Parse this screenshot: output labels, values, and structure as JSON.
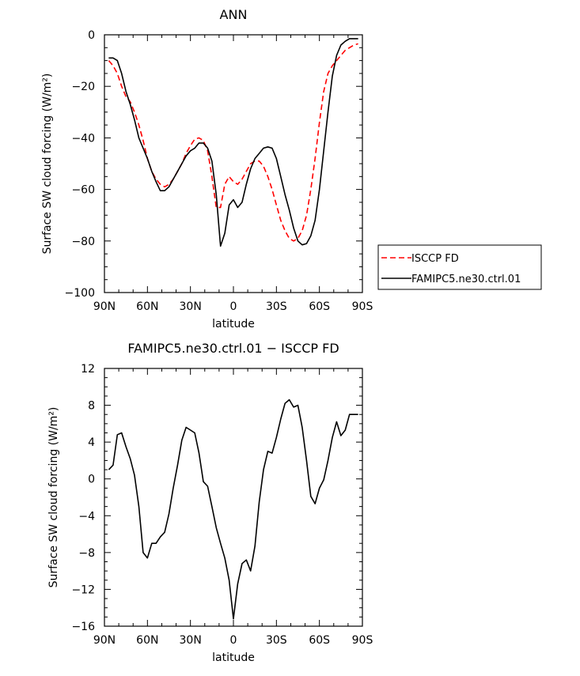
{
  "chart_data": [
    {
      "type": "line",
      "title": "ANN",
      "xlabel": "latitude",
      "ylabel": "Surface SW cloud forcing (W/m²)",
      "xlim": [
        90,
        -90
      ],
      "ylim": [
        -100,
        0
      ],
      "x_tick_labels": [
        "90N",
        "60N",
        "30N",
        "0",
        "30S",
        "60S",
        "90S"
      ],
      "x_tick_values": [
        90,
        60,
        30,
        0,
        -30,
        -60,
        -90
      ],
      "y_ticks": [
        0,
        -20,
        -40,
        -60,
        -80,
        -100
      ],
      "y_tick_labels": [
        "0",
        "−20",
        "−40",
        "−60",
        "−80",
        "−100"
      ],
      "legend_position": "right",
      "series": [
        {
          "name": "ISCCP FD",
          "color": "#ff0000",
          "dash": "dashed",
          "x": [
            87,
            84,
            81,
            78,
            75,
            72,
            69,
            66,
            63,
            60,
            57,
            54,
            51,
            48,
            45,
            42,
            39,
            36,
            33,
            30,
            27,
            24,
            21,
            18,
            15,
            12,
            9,
            6,
            3,
            0,
            -3,
            -6,
            -9,
            -12,
            -15,
            -18,
            -21,
            -24,
            -27,
            -30,
            -33,
            -36,
            -39,
            -42,
            -45,
            -48,
            -51,
            -54,
            -57,
            -60,
            -63,
            -66,
            -69,
            -72,
            -75,
            -78,
            -81,
            -84,
            -87
          ],
          "y": [
            -10,
            -12,
            -15,
            -20,
            -24,
            -26,
            -30,
            -35,
            -41,
            -48,
            -53,
            -56,
            -58,
            -59,
            -58,
            -56,
            -53,
            -50,
            -46,
            -43,
            -40.5,
            -40,
            -41,
            -45,
            -55,
            -67,
            -67,
            -58,
            -55,
            -57,
            -58,
            -56,
            -53,
            -50,
            -49,
            -49,
            -51,
            -55,
            -60,
            -66,
            -72,
            -76,
            -79,
            -80,
            -79,
            -76,
            -70,
            -60,
            -48,
            -34,
            -22,
            -15,
            -12,
            -10,
            -8,
            -6,
            -5,
            -4,
            -3.5
          ]
        },
        {
          "name": "FAMIPC5.ne30.ctrl.01",
          "color": "#000000",
          "dash": "solid",
          "x": [
            87,
            84,
            81,
            78,
            75,
            72,
            69,
            66,
            63,
            60,
            57,
            54,
            51,
            48,
            45,
            42,
            39,
            36,
            33,
            30,
            27,
            24,
            21,
            18,
            15,
            12,
            9,
            6,
            3,
            0,
            -3,
            -6,
            -9,
            -12,
            -15,
            -18,
            -21,
            -24,
            -27,
            -30,
            -33,
            -36,
            -39,
            -42,
            -45,
            -48,
            -51,
            -54,
            -57,
            -60,
            -63,
            -66,
            -69,
            -72,
            -75,
            -78,
            -81,
            -84,
            -87
          ],
          "y": [
            -9,
            -9,
            -10,
            -15,
            -22,
            -27,
            -33,
            -40,
            -44,
            -48,
            -53,
            -57,
            -60.5,
            -60.5,
            -59,
            -56,
            -53,
            -50,
            -47,
            -45,
            -44,
            -42,
            -42,
            -44,
            -49,
            -62,
            -82,
            -77,
            -66,
            -64,
            -67,
            -65,
            -58,
            -52,
            -48,
            -46,
            -44,
            -43.5,
            -44,
            -48,
            -55,
            -62,
            -68,
            -75,
            -80,
            -81.5,
            -81,
            -78,
            -72,
            -60,
            -45,
            -30,
            -16,
            -8,
            -4,
            -2.5,
            -1.5,
            -1.5,
            -1.5
          ]
        }
      ]
    },
    {
      "type": "line",
      "title": "FAMIPC5.ne30.ctrl.01 − ISCCP FD",
      "xlabel": "latitude",
      "ylabel": "Surface SW cloud forcing (W/m²)",
      "xlim": [
        90,
        -90
      ],
      "ylim": [
        -16,
        12
      ],
      "x_tick_labels": [
        "90N",
        "60N",
        "30N",
        "0",
        "30S",
        "60S",
        "90S"
      ],
      "x_tick_values": [
        90,
        60,
        30,
        0,
        -30,
        -60,
        -90
      ],
      "y_ticks": [
        12,
        8,
        4,
        0,
        -4,
        -8,
        -12,
        -16
      ],
      "y_tick_labels": [
        "12",
        "8",
        "4",
        "0",
        "−4",
        "−8",
        "−12",
        "−16"
      ],
      "series": [
        {
          "color": "#000000",
          "dash": "solid",
          "x": [
            87,
            84,
            81,
            78,
            75,
            72,
            69,
            66,
            63,
            60,
            57,
            54,
            51,
            48,
            45,
            42,
            39,
            36,
            33,
            30,
            27,
            24,
            21,
            18,
            15,
            12,
            9,
            6,
            3,
            0,
            -3,
            -6,
            -9,
            -12,
            -15,
            -18,
            -21,
            -24,
            -27,
            -30,
            -33,
            -36,
            -39,
            -42,
            -45,
            -48,
            -51,
            -54,
            -57,
            -60,
            -63,
            -66,
            -69,
            -72,
            -75,
            -78,
            -81,
            -84,
            -87
          ],
          "y": [
            1,
            1.5,
            4.8,
            5,
            3.5,
            2.2,
            0.4,
            -3,
            -8,
            -8.6,
            -7,
            -7,
            -6.3,
            -5.8,
            -3.8,
            -1,
            1.5,
            4.2,
            5.6,
            5.3,
            5,
            2.8,
            -0.3,
            -0.8,
            -3,
            -5.3,
            -7,
            -8.6,
            -11,
            -15.2,
            -11.4,
            -9.2,
            -8.8,
            -10,
            -7.3,
            -2.5,
            1,
            3,
            2.8,
            4.5,
            6.5,
            8.2,
            8.6,
            7.8,
            8,
            5.6,
            2,
            -1.9,
            -2.7,
            -1,
            -0.1,
            2,
            4.5,
            6.2,
            4.7,
            5.3,
            7,
            7,
            7
          ]
        }
      ]
    }
  ]
}
